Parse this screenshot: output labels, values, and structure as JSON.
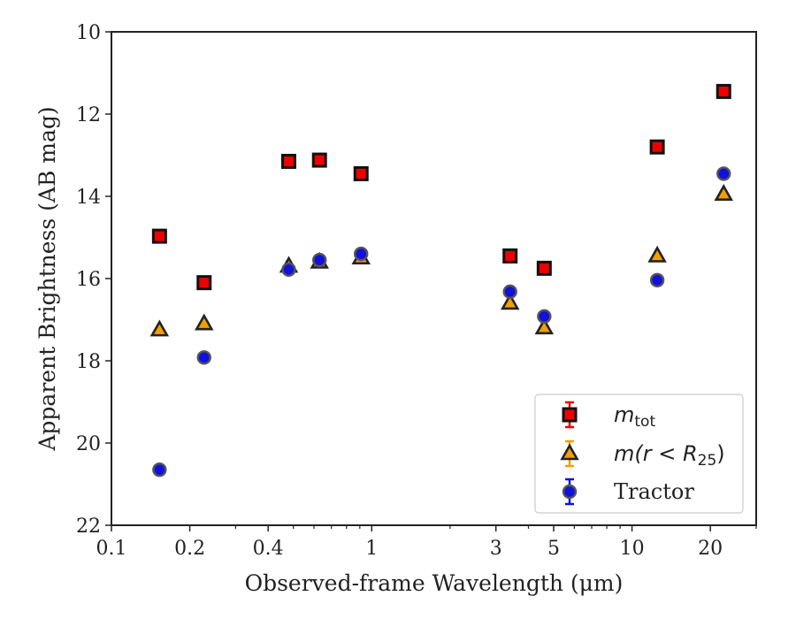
{
  "chart_data": {
    "type": "scatter",
    "title": "",
    "xlabel": "Observed-frame Wavelength (μm)",
    "ylabel": "Apparent Brightness (AB mag)",
    "xscale": "log",
    "xlim": [
      0.1,
      30
    ],
    "ylim": [
      22,
      10
    ],
    "y_inverted": true,
    "grid": false,
    "legend_position": "lower-right",
    "x_ticks": [
      0.1,
      0.2,
      0.4,
      1,
      3,
      5,
      10,
      20
    ],
    "x_tick_labels": [
      "0.1",
      "0.2",
      "0.4",
      "1",
      "3",
      "5",
      "10",
      "20"
    ],
    "y_ticks": [
      10,
      12,
      14,
      16,
      18,
      20,
      22
    ],
    "y_tick_labels": [
      "10",
      "12",
      "14",
      "16",
      "18",
      "20",
      "22"
    ],
    "series": [
      {
        "name": "m_tot",
        "legend_label": {
          "main": "m",
          "sub": "tot",
          "rest": ""
        },
        "marker": "square",
        "color": "#ee0000",
        "edge_color": "#111111",
        "points": [
          {
            "x": 0.153,
            "y": 14.97
          },
          {
            "x": 0.227,
            "y": 16.1
          },
          {
            "x": 0.48,
            "y": 13.15
          },
          {
            "x": 0.63,
            "y": 13.12
          },
          {
            "x": 0.91,
            "y": 13.45
          },
          {
            "x": 3.4,
            "y": 15.45
          },
          {
            "x": 4.6,
            "y": 15.75
          },
          {
            "x": 12.5,
            "y": 12.8
          },
          {
            "x": 22.5,
            "y": 11.45
          }
        ]
      },
      {
        "name": "m(r < R_25)",
        "legend_label": {
          "main": "m(r < R",
          "sub": "25",
          "rest": ")"
        },
        "marker": "triangle",
        "color": "#f0a000",
        "edge_color": "#222222",
        "points": [
          {
            "x": 0.153,
            "y": 17.25
          },
          {
            "x": 0.227,
            "y": 17.1
          },
          {
            "x": 0.48,
            "y": 15.7
          },
          {
            "x": 0.63,
            "y": 15.6
          },
          {
            "x": 0.91,
            "y": 15.5
          },
          {
            "x": 3.4,
            "y": 16.6
          },
          {
            "x": 4.6,
            "y": 17.2
          },
          {
            "x": 12.5,
            "y": 15.45
          },
          {
            "x": 22.5,
            "y": 13.95
          }
        ]
      },
      {
        "name": "Tractor",
        "legend_label": {
          "main": "Tractor",
          "sub": "",
          "rest": ""
        },
        "marker": "circle",
        "color": "#1111dd",
        "edge_color": "#555555",
        "points": [
          {
            "x": 0.153,
            "y": 20.65
          },
          {
            "x": 0.227,
            "y": 17.92
          },
          {
            "x": 0.48,
            "y": 15.78
          },
          {
            "x": 0.63,
            "y": 15.55
          },
          {
            "x": 0.91,
            "y": 15.4
          },
          {
            "x": 3.4,
            "y": 16.32
          },
          {
            "x": 4.6,
            "y": 16.92
          },
          {
            "x": 12.5,
            "y": 16.04
          },
          {
            "x": 22.5,
            "y": 13.45
          }
        ]
      }
    ]
  }
}
